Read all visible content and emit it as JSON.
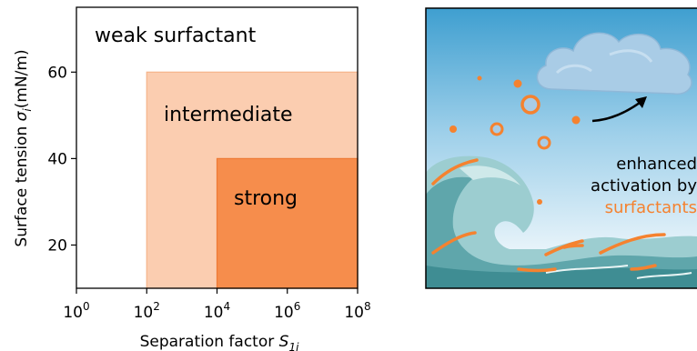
{
  "chart_data": {
    "type": "region",
    "xlabel": "Separation factor",
    "xlabel_symbol": "S",
    "xlabel_subscript": "1i",
    "ylabel": "Surface tension",
    "ylabel_symbol": "σ",
    "ylabel_subscript": "i",
    "ylabel_unit": "(mN/m)",
    "xscale": "log",
    "xlim": [
      1,
      100000000
    ],
    "ylim": [
      10,
      75
    ],
    "xticks": [
      {
        "value": 1,
        "base": "10",
        "exp": "0"
      },
      {
        "value": 100,
        "base": "10",
        "exp": "2"
      },
      {
        "value": 10000,
        "base": "10",
        "exp": "4"
      },
      {
        "value": 1000000,
        "base": "10",
        "exp": "6"
      },
      {
        "value": 100000000,
        "base": "10",
        "exp": "8"
      }
    ],
    "yticks": [
      {
        "value": 20,
        "label": "20"
      },
      {
        "value": 40,
        "label": "40"
      },
      {
        "value": 60,
        "label": "60"
      }
    ],
    "regions": [
      {
        "name": "weak surfactant",
        "x": [
          1,
          100000000
        ],
        "y": [
          10,
          75
        ],
        "color": "#ffffff"
      },
      {
        "name": "intermediate",
        "x": [
          100,
          100000000
        ],
        "y": [
          10,
          60
        ],
        "color": "#fbcdb0"
      },
      {
        "name": "strong",
        "x": [
          10000,
          100000000
        ],
        "y": [
          10,
          40
        ],
        "color": "#f68d4c"
      }
    ],
    "colors": {
      "intermediate_edge": "#f6b48a",
      "strong_edge": "#ee7a35"
    }
  },
  "illustration": {
    "caption_lines": [
      "enhanced",
      "activation by",
      "surfactants"
    ],
    "caption_color": "#000000",
    "highlight_color": "#f5822f",
    "water_color": "#6fb4b5",
    "cloud_color": "#a9cce6"
  }
}
